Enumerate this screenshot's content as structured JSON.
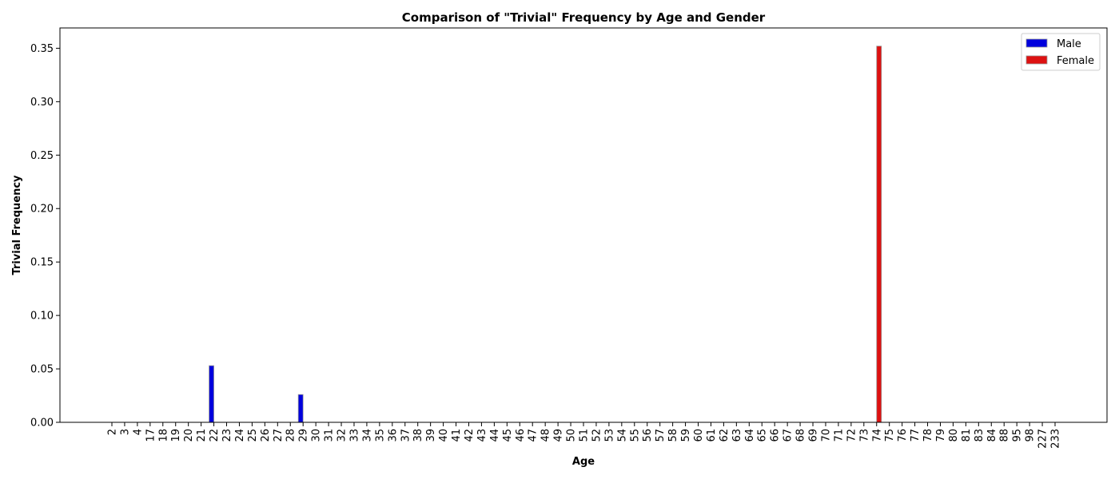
{
  "chart_data": {
    "type": "bar",
    "title": "Comparison of \"Trivial\" Frequency by Age and Gender",
    "xlabel": "Age",
    "ylabel": "Trivial Frequency",
    "categories": [
      "2",
      "3",
      "4",
      "17",
      "18",
      "19",
      "20",
      "21",
      "22",
      "23",
      "24",
      "25",
      "26",
      "27",
      "28",
      "29",
      "30",
      "31",
      "32",
      "33",
      "34",
      "35",
      "36",
      "37",
      "38",
      "39",
      "40",
      "41",
      "42",
      "43",
      "44",
      "45",
      "46",
      "47",
      "48",
      "49",
      "50",
      "51",
      "52",
      "53",
      "54",
      "55",
      "56",
      "57",
      "58",
      "59",
      "60",
      "61",
      "62",
      "63",
      "64",
      "65",
      "66",
      "67",
      "68",
      "69",
      "70",
      "71",
      "72",
      "73",
      "74",
      "75",
      "76",
      "77",
      "78",
      "79",
      "80",
      "81",
      "83",
      "84",
      "88",
      "95",
      "98",
      "227",
      "233"
    ],
    "series": [
      {
        "name": "Male",
        "color": "#0000dd",
        "values": [
          0,
          0,
          0,
          0,
          0,
          0,
          0,
          0,
          0.053,
          0,
          0,
          0,
          0,
          0,
          0,
          0.026,
          0,
          0,
          0,
          0,
          0,
          0,
          0,
          0,
          0,
          0,
          0,
          0,
          0,
          0,
          0,
          0,
          0,
          0,
          0,
          0,
          0,
          0,
          0,
          0,
          0,
          0,
          0,
          0,
          0,
          0,
          0,
          0,
          0,
          0,
          0,
          0,
          0,
          0,
          0,
          0,
          0,
          0,
          0,
          0,
          0,
          0,
          0,
          0,
          0,
          0,
          0,
          0,
          0,
          0,
          0,
          0,
          0,
          0,
          0
        ]
      },
      {
        "name": "Female",
        "color": "#dd1111",
        "values": [
          0,
          0,
          0,
          0,
          0,
          0,
          0,
          0,
          0,
          0,
          0,
          0,
          0,
          0,
          0,
          0,
          0,
          0,
          0,
          0,
          0,
          0,
          0,
          0,
          0,
          0,
          0,
          0,
          0,
          0,
          0,
          0,
          0,
          0,
          0,
          0,
          0,
          0,
          0,
          0,
          0,
          0,
          0,
          0,
          0,
          0,
          0,
          0,
          0,
          0,
          0,
          0,
          0,
          0,
          0,
          0,
          0,
          0,
          0,
          0,
          0.352,
          0,
          0,
          0,
          0,
          0,
          0,
          0,
          0,
          0,
          0,
          0,
          0,
          0,
          0
        ]
      }
    ],
    "yticks": [
      "0.00",
      "0.05",
      "0.10",
      "0.15",
      "0.20",
      "0.25",
      "0.30",
      "0.35"
    ],
    "ylim": [
      0,
      0.369
    ],
    "grid": false,
    "legend_position": "top-right"
  }
}
